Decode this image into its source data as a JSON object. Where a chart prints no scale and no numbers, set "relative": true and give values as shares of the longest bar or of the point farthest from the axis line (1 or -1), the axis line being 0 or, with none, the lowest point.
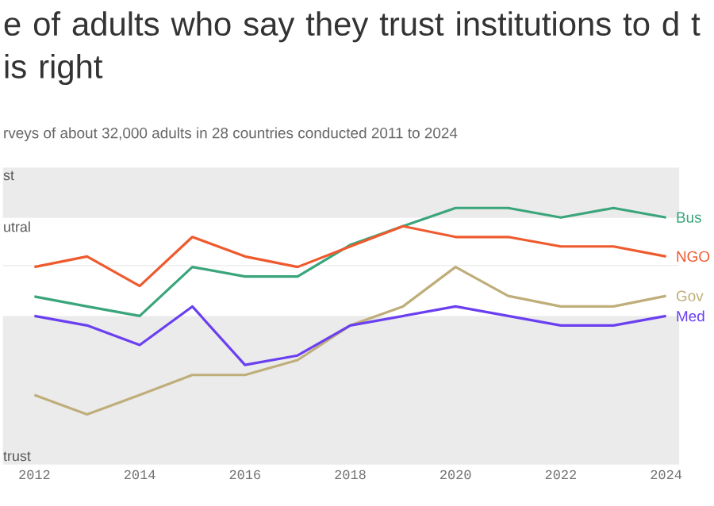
{
  "chart_data": {
    "type": "line",
    "relative": true,
    "title": "e of adults who say they trust institutions to d t is right",
    "subtitle": "rveys of about 32,000 adults in 28 countries conducted 2011 to 2024",
    "x": [
      2012,
      2013,
      2014,
      2015,
      2016,
      2017,
      2018,
      2019,
      2020,
      2021,
      2022,
      2023,
      2024
    ],
    "xlim": [
      2011.4,
      2024.25
    ],
    "xticks": [
      2012,
      2014,
      2016,
      2018,
      2020,
      2022,
      2024
    ],
    "series": [
      {
        "name": "Bus",
        "color": "#3aa57a",
        "values": [
          0.655,
          0.616,
          0.579,
          0.77,
          0.733,
          0.733,
          0.856,
          0.929,
          1.0,
          1.0,
          0.963,
          1.0,
          0.963
        ]
      },
      {
        "name": "NGO",
        "color": "#ee5a2e",
        "values": [
          0.77,
          0.811,
          0.696,
          0.887,
          0.811,
          0.77,
          0.85,
          0.929,
          0.887,
          0.887,
          0.85,
          0.85,
          0.811
        ]
      },
      {
        "name": "Gov",
        "color": "#bfae7a",
        "values": [
          0.271,
          0.195,
          0.271,
          0.349,
          0.349,
          0.407,
          0.542,
          0.616,
          0.77,
          0.657,
          0.616,
          0.616,
          0.657
        ]
      },
      {
        "name": "Med",
        "color": "#6a3ff0",
        "values": [
          0.579,
          0.542,
          0.466,
          0.616,
          0.388,
          0.425,
          0.542,
          0.579,
          0.616,
          0.579,
          0.542,
          0.542,
          0.579
        ]
      }
    ],
    "bands": [
      {
        "axis": "y",
        "from": 0.961,
        "to": 1.158,
        "label": "st",
        "color": "#ebebeb"
      },
      {
        "axis": "y",
        "from": 0,
        "to": 0.579,
        "label": "trust",
        "color": "#ebebeb"
      }
    ],
    "annotations": [
      "utral"
    ],
    "ref_lines": [
      {
        "axis": "y",
        "value": 0.776,
        "color": "#eeeeee"
      }
    ],
    "legend": false,
    "grid": false,
    "line_style": "solid",
    "marker": "none"
  }
}
